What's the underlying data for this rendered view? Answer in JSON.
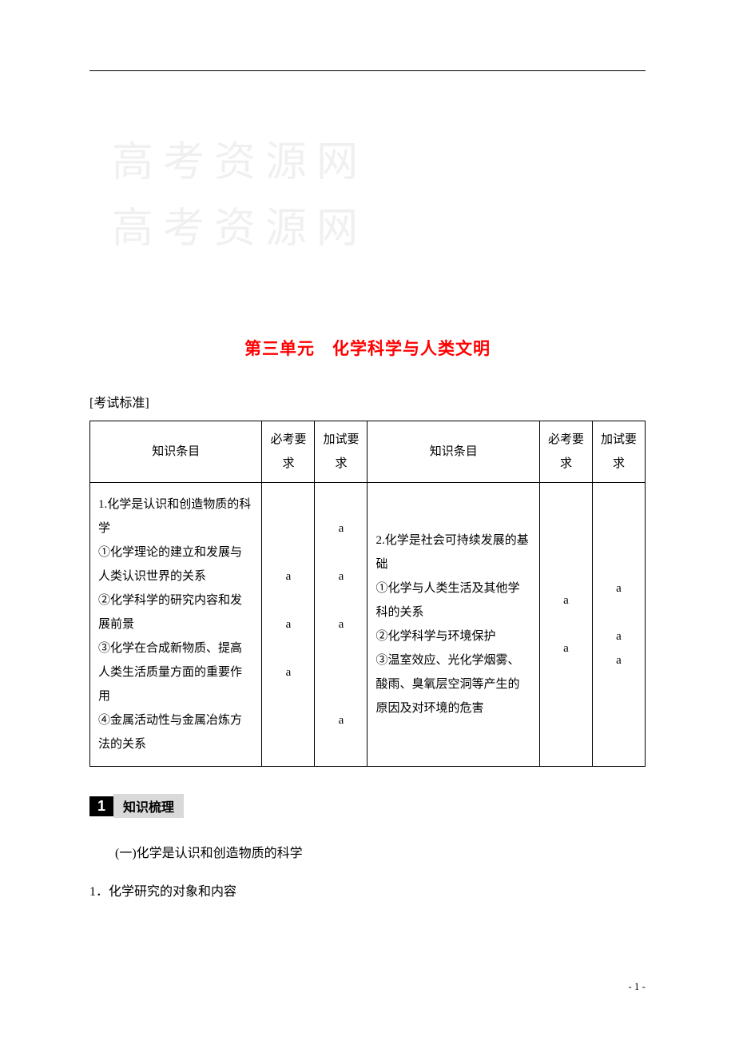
{
  "watermark": {
    "line1": "高考资源网",
    "line2": "高考资源网"
  },
  "title": "第三单元　化学科学与人类文明",
  "exam_std_label": "[考试标准]",
  "table": {
    "headers": {
      "topic": "知识条目",
      "req1": "必考要求",
      "req2": "加试要求"
    },
    "left_topic": "1.化学是认识和创造物质的科学\n①化学理论的建立和发展与人类认识世界的关系\n②化学科学的研究内容和发展前景\n③化学在合成新物质、提高人类生活质量方面的重要作用\n④金属活动性与金属冶炼方法的关系",
    "left_req1": "a\n\na\n\na",
    "left_req2": "a\n\na\n\na\n\n\n\na",
    "right_topic": "2.化学是社会可持续发展的基础\n①化学与人类生活及其他学科的关系\n②化学科学与环境保护\n③温室效应、光化学烟雾、酸雨、臭氧层空洞等产生的原因及对环境的危害",
    "right_req1": "a\n\na",
    "right_req2": "a\n\na\na"
  },
  "section": {
    "number": "1",
    "label": "知识梳理"
  },
  "subhead1": "(一)化学是认识和创造物质的科学",
  "subhead2": "1．化学研究的对象和内容",
  "page_number": "- 1 -"
}
